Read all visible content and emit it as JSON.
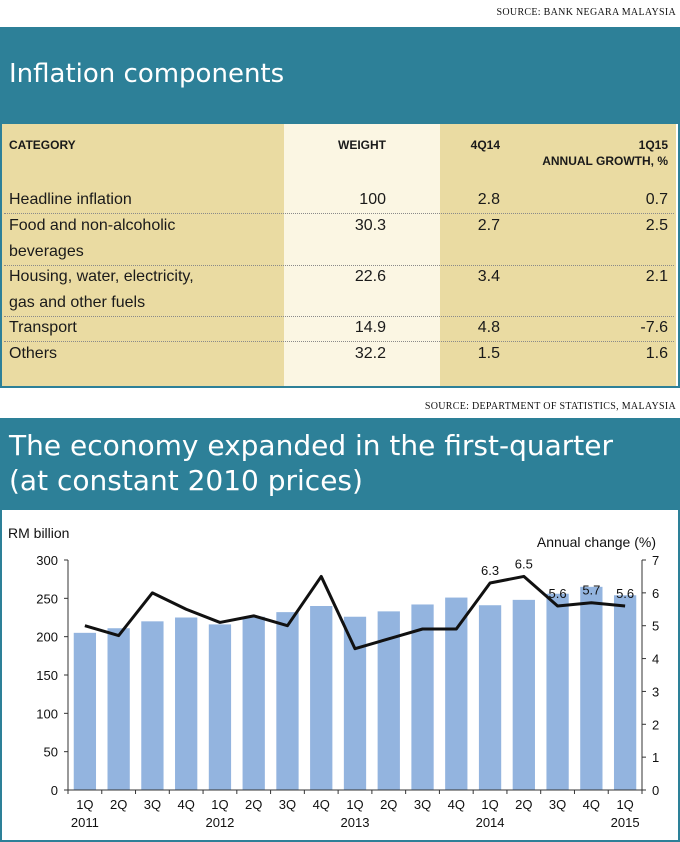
{
  "table_section": {
    "source": "SOURCE: BANK NEGARA MALAYSIA",
    "title": "Inflation components",
    "headers": {
      "category": "CATEGORY",
      "weight": "WEIGHT",
      "q4_14": "4Q14",
      "q1_15_line1": "1Q15",
      "q1_15_line2": "ANNUAL GROWTH, %"
    },
    "rows": [
      {
        "category": [
          "Headline inflation"
        ],
        "weight": "100",
        "q4_14": "2.8",
        "q1_15": "0.7"
      },
      {
        "category": [
          "Food and non-alcoholic",
          "beverages"
        ],
        "weight": "30.3",
        "q4_14": "2.7",
        "q1_15": "2.5"
      },
      {
        "category": [
          "Housing, water, electricity,",
          "gas and other fuels"
        ],
        "weight": "22.6",
        "q4_14": "3.4",
        "q1_15": "2.1"
      },
      {
        "category": [
          "Transport"
        ],
        "weight": "14.9",
        "q4_14": "4.8",
        "q1_15": "-7.6"
      },
      {
        "category": [
          "Others"
        ],
        "weight": "32.2",
        "q4_14": "1.5",
        "q1_15": "1.6"
      }
    ],
    "colors": {
      "banner": "#2d8098",
      "tan": "#eadba2",
      "cream": "#fbf6e3",
      "white": "#ffffff"
    }
  },
  "chart_section": {
    "source": "SOURCE: DEPARTMENT OF  STATISTICS, MALAYSIA",
    "title_line1": "The economy expanded in the first-quarter",
    "title_line2": "(at constant 2010 prices)"
  },
  "chart_data": {
    "type": "bar",
    "categories": [
      "1Q",
      "2Q",
      "3Q",
      "4Q",
      "1Q",
      "2Q",
      "3Q",
      "4Q",
      "1Q",
      "2Q",
      "3Q",
      "4Q",
      "1Q",
      "2Q",
      "3Q",
      "4Q",
      "1Q"
    ],
    "years": [
      {
        "label": "2011",
        "at_index": 0
      },
      {
        "label": "2012",
        "at_index": 4
      },
      {
        "label": "2013",
        "at_index": 8
      },
      {
        "label": "2014",
        "at_index": 12
      },
      {
        "label": "2015",
        "at_index": 16
      }
    ],
    "series": [
      {
        "kind": "bar",
        "axis": "left",
        "values": [
          205,
          211,
          220,
          225,
          216,
          226,
          232,
          240,
          226,
          233,
          242,
          251,
          241,
          248,
          256,
          265,
          254
        ],
        "color": "#93b4df"
      },
      {
        "kind": "line",
        "axis": "right",
        "values": [
          5.0,
          4.7,
          6.0,
          5.5,
          5.1,
          5.3,
          5.0,
          6.5,
          4.3,
          4.6,
          4.9,
          4.9,
          6.3,
          6.5,
          5.6,
          5.7,
          5.6
        ],
        "color": "#111111"
      }
    ],
    "data_labels": [
      {
        "index": 12,
        "text": "6.3"
      },
      {
        "index": 13,
        "text": "6.5"
      },
      {
        "index": 14,
        "text": "5.6"
      },
      {
        "index": 15,
        "text": "5.7"
      },
      {
        "index": 16,
        "text": "5.6"
      }
    ],
    "ylabel_left": "RM billion",
    "ylabel_right": "Annual change (%)",
    "ylim_left": [
      0,
      300
    ],
    "yticks_left": [
      0,
      50,
      100,
      150,
      200,
      250,
      300
    ],
    "ylim_right": [
      0,
      7
    ],
    "yticks_right": [
      0,
      1,
      2,
      3,
      4,
      5,
      6,
      7
    ],
    "grid": false
  }
}
